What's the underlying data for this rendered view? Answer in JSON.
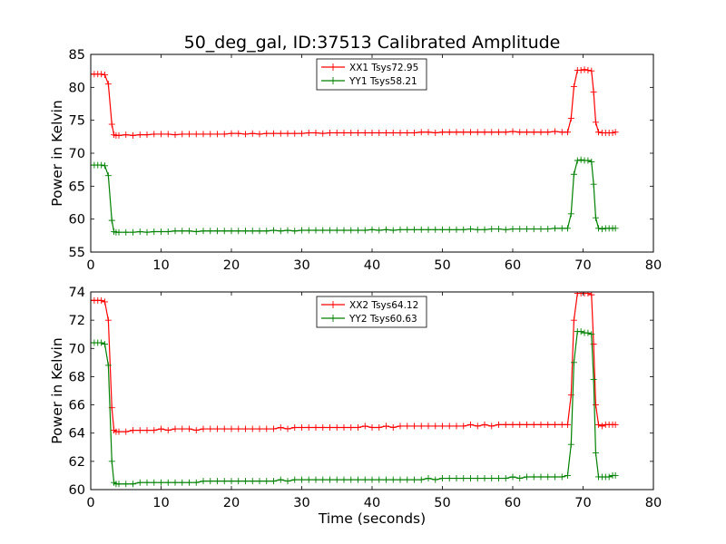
{
  "title": "50_deg_gal, ID:37513 Calibrated Amplitude",
  "colors": {
    "xx": "#ff0000",
    "yy": "#008000",
    "axis": "#000000"
  },
  "chart_data": [
    {
      "type": "line",
      "xlabel": "",
      "ylabel": "Power in Kelvin",
      "xlim": [
        0,
        80
      ],
      "ylim": [
        55,
        85
      ],
      "xticks": [
        "0",
        "10",
        "20",
        "30",
        "40",
        "50",
        "60",
        "70",
        "80"
      ],
      "yticks": [
        "55",
        "60",
        "65",
        "70",
        "75",
        "80",
        "85"
      ],
      "legend": "upper center",
      "grid": false,
      "series": [
        {
          "name": "XX1 Tsys72.95",
          "color": "#ff0000",
          "x": [
            0,
            0.5,
            1,
            1.5,
            2,
            2.5,
            3,
            3.3,
            3.6,
            4,
            5,
            6,
            7,
            8,
            9,
            10,
            11,
            12,
            13,
            14,
            15,
            16,
            17,
            18,
            19,
            20,
            21,
            22,
            23,
            24,
            25,
            26,
            27,
            28,
            29,
            30,
            31,
            32,
            33,
            34,
            35,
            36,
            37,
            38,
            39,
            40,
            41,
            42,
            43,
            44,
            45,
            46,
            47,
            48,
            49,
            50,
            51,
            52,
            53,
            54,
            55,
            56,
            57,
            58,
            59,
            60,
            61,
            62,
            63,
            64,
            65,
            66,
            67,
            67.8,
            68.3,
            68.7,
            69.2,
            69.7,
            70.2,
            70.7,
            71.2,
            71.5,
            71.8,
            72.2,
            72.7,
            73.2,
            73.7,
            74.2,
            74.6
          ],
          "y": [
            82.0,
            82.0,
            82.0,
            82.0,
            81.9,
            80.5,
            74.4,
            72.8,
            72.7,
            72.7,
            72.8,
            72.7,
            72.8,
            72.8,
            72.9,
            72.9,
            72.9,
            72.8,
            72.9,
            72.9,
            72.9,
            72.9,
            72.9,
            72.9,
            72.9,
            73.0,
            73.0,
            72.9,
            73.0,
            72.9,
            73.0,
            73.0,
            73.0,
            73.0,
            73.0,
            73.0,
            73.1,
            73.1,
            73.0,
            73.1,
            73.1,
            73.1,
            73.1,
            73.1,
            73.1,
            73.1,
            73.1,
            73.1,
            73.1,
            73.1,
            73.1,
            73.1,
            73.2,
            73.2,
            73.1,
            73.2,
            73.2,
            73.2,
            73.2,
            73.2,
            73.2,
            73.2,
            73.2,
            73.2,
            73.2,
            73.3,
            73.2,
            73.2,
            73.2,
            73.2,
            73.2,
            73.3,
            73.2,
            73.2,
            75.3,
            80.1,
            82.6,
            82.6,
            82.7,
            82.6,
            82.5,
            79.3,
            74.7,
            73.2,
            73.1,
            73.1,
            73.1,
            73.1,
            73.2
          ]
        },
        {
          "name": "YY1 Tsys58.21",
          "color": "#008000",
          "x": [
            0,
            0.5,
            1,
            1.5,
            2,
            2.5,
            3,
            3.3,
            3.6,
            4,
            5,
            6,
            7,
            8,
            9,
            10,
            11,
            12,
            13,
            14,
            15,
            16,
            17,
            18,
            19,
            20,
            21,
            22,
            23,
            24,
            25,
            26,
            27,
            28,
            29,
            30,
            31,
            32,
            33,
            34,
            35,
            36,
            37,
            38,
            39,
            40,
            41,
            42,
            43,
            44,
            45,
            46,
            47,
            48,
            49,
            50,
            51,
            52,
            53,
            54,
            55,
            56,
            57,
            58,
            59,
            60,
            61,
            62,
            63,
            64,
            65,
            66,
            67,
            67.8,
            68.3,
            68.7,
            69.2,
            69.7,
            70.2,
            70.7,
            71.2,
            71.5,
            71.8,
            72.2,
            72.7,
            73.2,
            73.7,
            74.2,
            74.6
          ],
          "y": [
            68.2,
            68.2,
            68.2,
            68.2,
            68.1,
            66.6,
            59.8,
            58.1,
            58.0,
            58.0,
            58.0,
            58.0,
            58.1,
            58.0,
            58.1,
            58.1,
            58.1,
            58.2,
            58.2,
            58.2,
            58.1,
            58.2,
            58.2,
            58.2,
            58.2,
            58.2,
            58.2,
            58.2,
            58.2,
            58.2,
            58.2,
            58.3,
            58.2,
            58.3,
            58.2,
            58.3,
            58.3,
            58.3,
            58.3,
            58.3,
            58.3,
            58.3,
            58.3,
            58.3,
            58.3,
            58.4,
            58.3,
            58.4,
            58.3,
            58.4,
            58.4,
            58.4,
            58.4,
            58.4,
            58.4,
            58.4,
            58.4,
            58.4,
            58.4,
            58.5,
            58.4,
            58.4,
            58.5,
            58.5,
            58.4,
            58.5,
            58.5,
            58.5,
            58.5,
            58.5,
            58.5,
            58.6,
            58.6,
            58.6,
            60.8,
            66.8,
            68.9,
            69.0,
            68.9,
            68.9,
            68.7,
            65.3,
            60.2,
            58.6,
            58.5,
            58.6,
            58.6,
            58.6,
            58.6
          ]
        }
      ]
    },
    {
      "type": "line",
      "xlabel": "Time (seconds)",
      "ylabel": "Power in Kelvin",
      "xlim": [
        0,
        80
      ],
      "ylim": [
        60,
        74
      ],
      "xticks": [
        "0",
        "10",
        "20",
        "30",
        "40",
        "50",
        "60",
        "70",
        "80"
      ],
      "yticks": [
        "60",
        "62",
        "64",
        "66",
        "68",
        "70",
        "72",
        "74"
      ],
      "legend": "upper center",
      "grid": false,
      "series": [
        {
          "name": "XX2 Tsys64.12",
          "color": "#ff0000",
          "x": [
            0,
            0.5,
            1,
            1.5,
            2,
            2.5,
            3,
            3.3,
            3.6,
            4,
            5,
            6,
            7,
            8,
            9,
            10,
            11,
            12,
            13,
            14,
            15,
            16,
            17,
            18,
            19,
            20,
            21,
            22,
            23,
            24,
            25,
            26,
            27,
            28,
            29,
            30,
            31,
            32,
            33,
            34,
            35,
            36,
            37,
            38,
            39,
            40,
            41,
            42,
            43,
            44,
            45,
            46,
            47,
            48,
            49,
            50,
            51,
            52,
            53,
            54,
            55,
            56,
            57,
            58,
            59,
            60,
            61,
            62,
            63,
            64,
            65,
            66,
            67,
            67.8,
            68.3,
            68.7,
            69.2,
            69.7,
            70.2,
            70.7,
            71.2,
            71.5,
            71.8,
            72.2,
            72.7,
            73.2,
            73.7,
            74.2,
            74.6
          ],
          "y": [
            73.4,
            73.4,
            73.4,
            73.4,
            73.3,
            72.0,
            65.8,
            64.2,
            64.1,
            64.1,
            64.1,
            64.2,
            64.2,
            64.2,
            64.2,
            64.3,
            64.2,
            64.3,
            64.3,
            64.3,
            64.2,
            64.3,
            64.3,
            64.3,
            64.3,
            64.3,
            64.3,
            64.3,
            64.3,
            64.3,
            64.3,
            64.3,
            64.4,
            64.3,
            64.4,
            64.4,
            64.4,
            64.4,
            64.4,
            64.4,
            64.4,
            64.4,
            64.4,
            64.4,
            64.5,
            64.4,
            64.4,
            64.5,
            64.4,
            64.5,
            64.5,
            64.5,
            64.5,
            64.5,
            64.5,
            64.5,
            64.5,
            64.5,
            64.5,
            64.6,
            64.5,
            64.6,
            64.5,
            64.6,
            64.6,
            64.6,
            64.6,
            64.6,
            64.6,
            64.6,
            64.6,
            64.6,
            64.6,
            64.6,
            66.7,
            72.0,
            73.9,
            73.9,
            73.9,
            73.9,
            73.8,
            70.3,
            66.0,
            64.6,
            64.5,
            64.6,
            64.6,
            64.6,
            64.6
          ]
        },
        {
          "name": "YY2 Tsys60.63",
          "color": "#008000",
          "x": [
            0,
            0.5,
            1,
            1.5,
            2,
            2.5,
            3,
            3.3,
            3.6,
            4,
            5,
            6,
            7,
            8,
            9,
            10,
            11,
            12,
            13,
            14,
            15,
            16,
            17,
            18,
            19,
            20,
            21,
            22,
            23,
            24,
            25,
            26,
            27,
            28,
            29,
            30,
            31,
            32,
            33,
            34,
            35,
            36,
            37,
            38,
            39,
            40,
            41,
            42,
            43,
            44,
            45,
            46,
            47,
            48,
            49,
            50,
            51,
            52,
            53,
            54,
            55,
            56,
            57,
            58,
            59,
            60,
            61,
            62,
            63,
            64,
            65,
            66,
            67,
            67.8,
            68.3,
            68.7,
            69.2,
            69.7,
            70.2,
            70.7,
            71.2,
            71.5,
            71.8,
            72.2,
            72.7,
            73.2,
            73.7,
            74.2,
            74.6
          ],
          "y": [
            70.4,
            70.4,
            70.4,
            70.4,
            70.3,
            68.8,
            62.0,
            60.5,
            60.4,
            60.4,
            60.4,
            60.4,
            60.5,
            60.5,
            60.5,
            60.5,
            60.5,
            60.5,
            60.5,
            60.5,
            60.5,
            60.6,
            60.6,
            60.6,
            60.6,
            60.6,
            60.6,
            60.6,
            60.6,
            60.6,
            60.6,
            60.6,
            60.7,
            60.6,
            60.7,
            60.7,
            60.7,
            60.7,
            60.7,
            60.7,
            60.7,
            60.7,
            60.7,
            60.7,
            60.7,
            60.7,
            60.7,
            60.7,
            60.7,
            60.7,
            60.7,
            60.7,
            60.7,
            60.8,
            60.7,
            60.8,
            60.8,
            60.8,
            60.8,
            60.8,
            60.8,
            60.8,
            60.8,
            60.8,
            60.8,
            60.9,
            60.8,
            60.9,
            60.9,
            60.9,
            60.9,
            60.9,
            60.9,
            61.0,
            63.2,
            69.0,
            71.2,
            71.2,
            71.1,
            71.1,
            71.0,
            67.8,
            62.6,
            60.9,
            60.9,
            60.9,
            60.9,
            61.0,
            61.0
          ]
        }
      ]
    }
  ]
}
